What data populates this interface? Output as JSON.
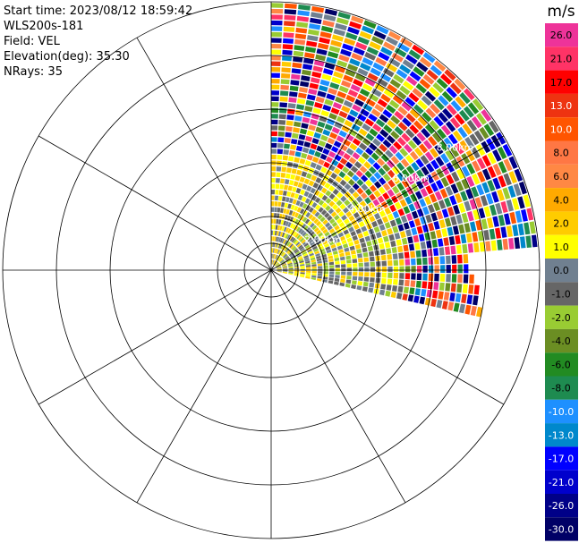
{
  "header": {
    "start_time": "Start time: 2023/08/12 18:59:42",
    "instrument": "WLS200s-181",
    "field": "Field: VEL",
    "elevation": "Elevation(deg): 35.30",
    "nrays": "NRays: 35"
  },
  "chart_data": {
    "type": "heatmap",
    "projection": "polar-ppi",
    "sector_deg": [
      0,
      103
    ],
    "n_rays": 35,
    "range_rings": [
      {
        "label": "",
        "km": 1
      },
      {
        "label": "2.00km",
        "km": 2
      },
      {
        "label": "4.00km",
        "km": 4
      },
      {
        "label": "6.00km",
        "km": 6
      },
      {
        "label": "8.00km",
        "km": 8
      }
    ],
    "max_range_km": 10,
    "spoke_angles_deg": [
      0,
      30,
      60,
      90,
      120,
      150,
      180,
      210,
      240,
      270,
      300,
      330
    ],
    "colorbar": {
      "unit": "m/s",
      "ticks": [
        "26.0",
        "21.0",
        "17.0",
        "13.0",
        "10.0",
        "8.0",
        "6.0",
        "4.0",
        "2.0",
        "1.0",
        "0.0",
        "-1.0",
        "-2.0",
        "-4.0",
        "-6.0",
        "-8.0",
        "-10.0",
        "-13.0",
        "-17.0",
        "-21.0",
        "-26.0",
        "-30.0"
      ],
      "colors": [
        "#ee3399",
        "#ff3366",
        "#ff0000",
        "#ee3311",
        "#ff5500",
        "#ff7744",
        "#ff8844",
        "#ffaa00",
        "#ffcc00",
        "#ffff00",
        "#708090",
        "#666666",
        "#99cc33",
        "#6b8e23",
        "#228b22",
        "#1e8b50",
        "#1e90ff",
        "#0088cc",
        "#0000ff",
        "#0000cc",
        "#000088",
        "#000066"
      ]
    },
    "field_pattern": {
      "near_zone_km": 4.2,
      "near_values": [
        "0.0",
        "-1.0",
        "-2.0",
        "1.0",
        "2.0"
      ],
      "near_north_values": [
        "2.0",
        "1.0",
        "0.0",
        "2.0",
        "-1.0"
      ],
      "far_values_note": "noise across full colour range"
    }
  }
}
